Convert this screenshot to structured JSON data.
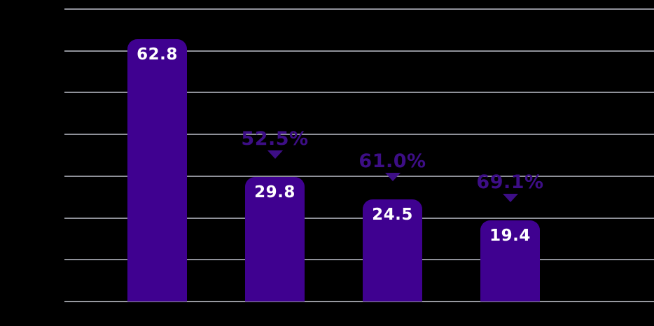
{
  "chart_data": {
    "type": "bar",
    "title": "",
    "xlabel": "",
    "ylabel": "",
    "legend": false,
    "grid": true,
    "background": "#000000",
    "categories": [
      "",
      "",
      "",
      ""
    ],
    "values": [
      62.8,
      29.8,
      24.5,
      19.4
    ],
    "bar_value_labels": [
      "62.8",
      "29.8",
      "24.5",
      "19.4"
    ],
    "annotations": [
      {
        "bar_index": 1,
        "text": "52.5%",
        "marker": "triangle-down"
      },
      {
        "bar_index": 2,
        "text": "61.0%",
        "marker": "triangle-down"
      },
      {
        "bar_index": 3,
        "text": "69.1%",
        "marker": "triangle-down"
      }
    ],
    "ylim": [
      0,
      70
    ],
    "gridline_step": 10,
    "gridline_count": 8,
    "colors": {
      "bar": "#3F0190",
      "annotation": "#3D0E86",
      "value_label": "#FFFFFF",
      "gridline": "#8F9199",
      "axis": "#97999F"
    }
  }
}
